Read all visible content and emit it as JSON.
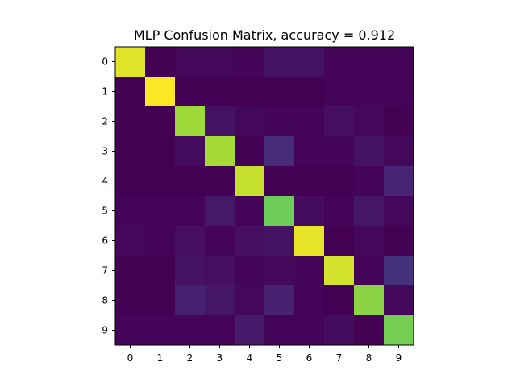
{
  "chart_data": {
    "type": "heatmap",
    "title": "MLP Confusion Matrix, accuracy = 0.912",
    "x_ticks": [
      "0",
      "1",
      "2",
      "3",
      "4",
      "5",
      "6",
      "7",
      "8",
      "9"
    ],
    "y_ticks": [
      "0",
      "1",
      "2",
      "3",
      "4",
      "5",
      "6",
      "7",
      "8",
      "9"
    ],
    "colormap": "viridis",
    "vmin": 0,
    "vmax": 1,
    "grid": false,
    "matrix": [
      [
        0.96,
        0.0,
        0.02,
        0.02,
        0.01,
        0.05,
        0.05,
        0.01,
        0.01,
        0.01
      ],
      [
        0.0,
        1.0,
        0.0,
        0.0,
        0.0,
        0.0,
        0.0,
        0.01,
        0.01,
        0.01
      ],
      [
        0.0,
        0.0,
        0.86,
        0.05,
        0.02,
        0.01,
        0.01,
        0.04,
        0.02,
        0.0
      ],
      [
        0.0,
        0.0,
        0.03,
        0.87,
        0.0,
        0.13,
        0.01,
        0.01,
        0.05,
        0.02
      ],
      [
        0.0,
        0.0,
        0.0,
        0.0,
        0.92,
        0.0,
        0.0,
        0.0,
        0.01,
        0.11
      ],
      [
        0.01,
        0.01,
        0.01,
        0.07,
        0.01,
        0.78,
        0.03,
        0.01,
        0.06,
        0.02
      ],
      [
        0.02,
        0.01,
        0.04,
        0.01,
        0.04,
        0.05,
        0.97,
        0.0,
        0.02,
        0.0
      ],
      [
        0.0,
        0.0,
        0.05,
        0.04,
        0.01,
        0.02,
        0.01,
        0.94,
        0.01,
        0.15
      ],
      [
        0.0,
        0.0,
        0.09,
        0.06,
        0.02,
        0.1,
        0.01,
        0.0,
        0.83,
        0.02
      ],
      [
        0.01,
        0.01,
        0.01,
        0.01,
        0.08,
        0.01,
        0.01,
        0.03,
        0.0,
        0.79
      ]
    ]
  }
}
